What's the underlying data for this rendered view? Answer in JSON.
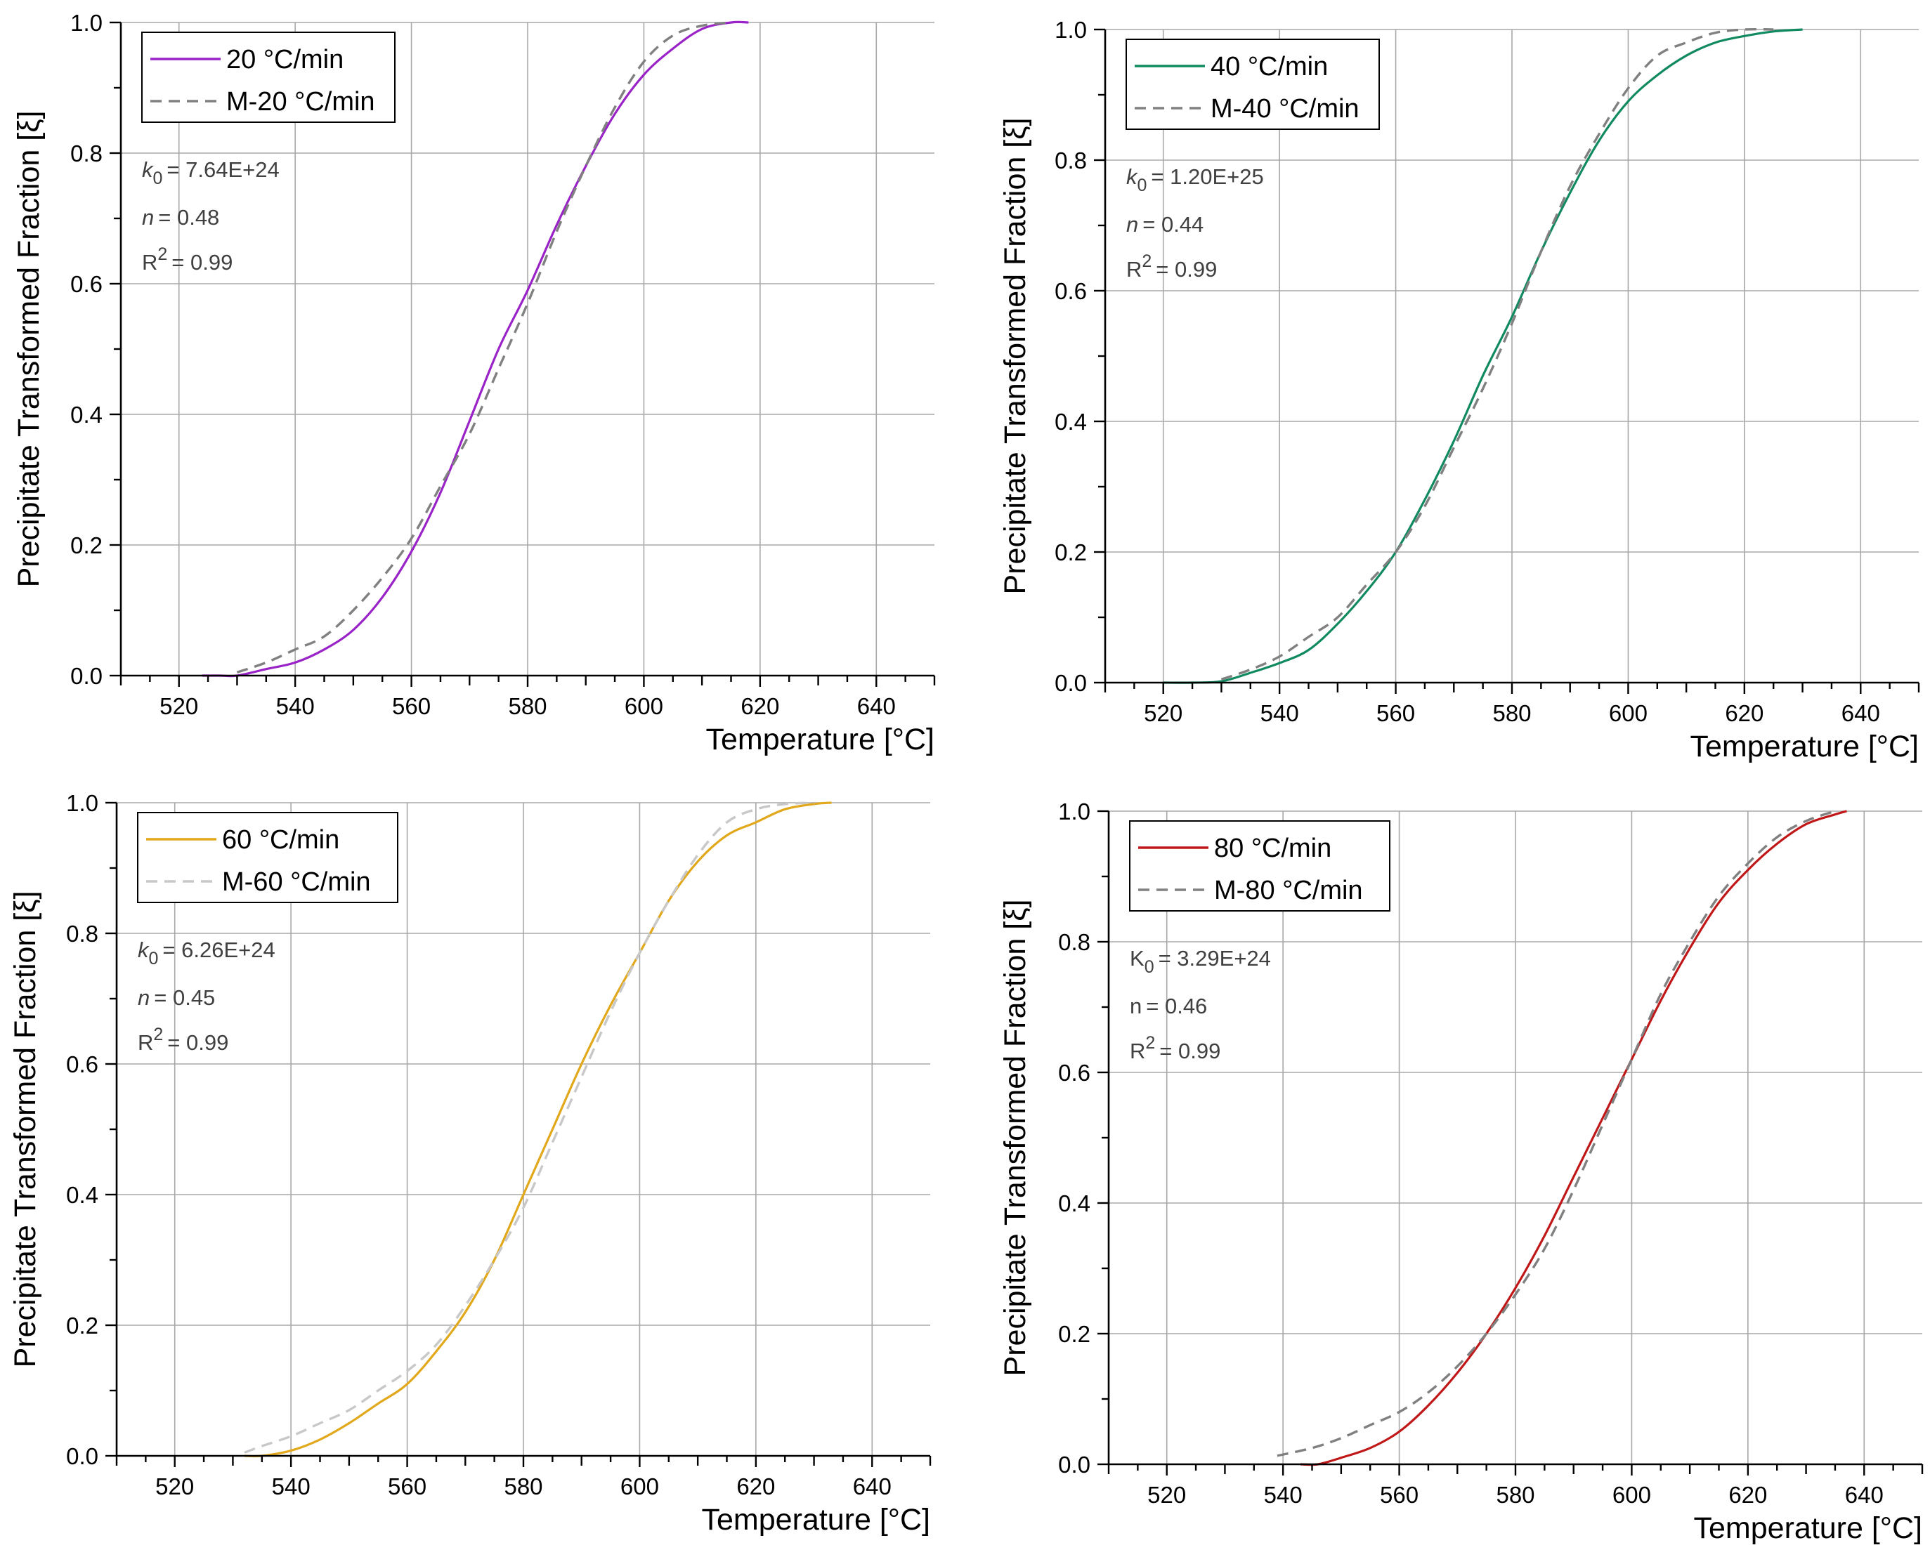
{
  "chart_data": [
    {
      "type": "line",
      "title": "",
      "xlabel": "Temperature [°C]",
      "ylabel": "Precipitate Transformed Fraction [ξ]",
      "xlim": [
        510,
        650
      ],
      "ylim": [
        0,
        1
      ],
      "xticks": [
        "520",
        "540",
        "560",
        "580",
        "600",
        "620",
        "640"
      ],
      "yticks": [
        "0.0",
        "0.2",
        "0.4",
        "0.6",
        "0.8",
        "1.0"
      ],
      "grid": true,
      "legend_position": "top-left",
      "series": [
        {
          "name": "20 °C/min",
          "style": "solid",
          "color": "#9a23c8",
          "x": [
            524,
            527,
            530,
            535,
            540,
            545,
            550,
            555,
            560,
            565,
            570,
            575,
            580,
            585,
            590,
            595,
            600,
            605,
            610,
            615,
            618
          ],
          "y": [
            0.0,
            0.0,
            0.0,
            0.01,
            0.02,
            0.04,
            0.07,
            0.12,
            0.19,
            0.28,
            0.39,
            0.5,
            0.59,
            0.69,
            0.78,
            0.86,
            0.92,
            0.96,
            0.99,
            1.0,
            1.0
          ]
        },
        {
          "name": "M-20 °C/min",
          "style": "dashed",
          "color": "#808080",
          "x": [
            530,
            535,
            540,
            545,
            550,
            555,
            560,
            565,
            570,
            575,
            580,
            585,
            590,
            595,
            600,
            605,
            610,
            615
          ],
          "y": [
            0.005,
            0.02,
            0.04,
            0.06,
            0.1,
            0.15,
            0.21,
            0.29,
            0.37,
            0.47,
            0.57,
            0.68,
            0.78,
            0.87,
            0.94,
            0.98,
            0.995,
            1.0
          ]
        }
      ],
      "annotations": {
        "k0_label": "k",
        "k0_sub": "0",
        "k0_value": "= 7.64E+24",
        "n_label": "n",
        "n_value": "= 0.48",
        "r2_label": "R",
        "r2_sup": "2",
        "r2_value": "= 0.99"
      }
    },
    {
      "type": "line",
      "title": "",
      "xlabel": "Temperature [°C]",
      "ylabel": "Precipitate Transformed Fraction [ξ]",
      "xlim": [
        510,
        650
      ],
      "ylim": [
        0,
        1
      ],
      "xticks": [
        "520",
        "540",
        "560",
        "580",
        "600",
        "620",
        "640"
      ],
      "yticks": [
        "0.0",
        "0.2",
        "0.4",
        "0.6",
        "0.8",
        "1.0"
      ],
      "grid": true,
      "legend_position": "top-left",
      "series": [
        {
          "name": "40 °C/min",
          "style": "solid",
          "color": "#118a5f",
          "x": [
            520,
            525,
            530,
            535,
            540,
            545,
            550,
            555,
            560,
            565,
            570,
            575,
            580,
            585,
            590,
            595,
            600,
            605,
            610,
            615,
            620,
            625,
            630
          ],
          "y": [
            0.0,
            0.0,
            0.002,
            0.015,
            0.03,
            0.05,
            0.09,
            0.14,
            0.2,
            0.28,
            0.37,
            0.47,
            0.56,
            0.66,
            0.75,
            0.83,
            0.89,
            0.93,
            0.96,
            0.98,
            0.99,
            0.997,
            1.0
          ]
        },
        {
          "name": "M-40 °C/min",
          "style": "dashed",
          "color": "#808080",
          "x": [
            530,
            535,
            540,
            545,
            550,
            555,
            560,
            565,
            570,
            575,
            580,
            585,
            590,
            595,
            600,
            605,
            610,
            615,
            620,
            625
          ],
          "y": [
            0.005,
            0.02,
            0.04,
            0.07,
            0.1,
            0.15,
            0.2,
            0.27,
            0.36,
            0.45,
            0.55,
            0.66,
            0.76,
            0.84,
            0.91,
            0.96,
            0.98,
            0.995,
            1.0,
            1.0
          ]
        }
      ],
      "annotations": {
        "k0_label": "k",
        "k0_sub": "0",
        "k0_value": "= 1.20E+25",
        "n_label": "n",
        "n_value": "= 0.44",
        "r2_label": "R",
        "r2_sup": "2",
        "r2_value": "= 0.99"
      }
    },
    {
      "type": "line",
      "title": "",
      "xlabel": "Temperature [°C]",
      "ylabel": "Precipitate Transformed Fraction [ξ]",
      "xlim": [
        510,
        650
      ],
      "ylim": [
        0,
        1
      ],
      "xticks": [
        "520",
        "540",
        "560",
        "580",
        "600",
        "620",
        "640"
      ],
      "yticks": [
        "0.0",
        "0.2",
        "0.4",
        "0.6",
        "0.8",
        "1.0"
      ],
      "grid": true,
      "legend_position": "top-left",
      "series": [
        {
          "name": "60 °C/min",
          "style": "solid",
          "color": "#e2a81c",
          "x": [
            532,
            535,
            540,
            545,
            550,
            555,
            560,
            565,
            570,
            575,
            580,
            585,
            590,
            595,
            600,
            605,
            610,
            615,
            620,
            625,
            630,
            633
          ],
          "y": [
            0.0,
            0.0,
            0.008,
            0.025,
            0.05,
            0.08,
            0.11,
            0.16,
            0.22,
            0.3,
            0.4,
            0.5,
            0.6,
            0.69,
            0.77,
            0.85,
            0.91,
            0.95,
            0.97,
            0.99,
            0.998,
            1.0
          ]
        },
        {
          "name": "M-60 °C/min",
          "style": "dashed",
          "color": "#c8c8c8",
          "x": [
            532,
            535,
            540,
            545,
            550,
            555,
            560,
            565,
            570,
            575,
            580,
            585,
            590,
            595,
            600,
            605,
            610,
            615,
            620,
            625,
            630
          ],
          "y": [
            0.005,
            0.015,
            0.03,
            0.05,
            0.07,
            0.1,
            0.13,
            0.17,
            0.23,
            0.3,
            0.38,
            0.48,
            0.58,
            0.68,
            0.77,
            0.85,
            0.92,
            0.97,
            0.99,
            0.998,
            1.0
          ]
        }
      ],
      "annotations": {
        "k0_label": "k",
        "k0_sub": "0",
        "k0_value": "= 6.26E+24",
        "n_label": "n",
        "n_value": "= 0.45",
        "r2_label": "R",
        "r2_sup": "2",
        "r2_value": "= 0.99"
      }
    },
    {
      "type": "line",
      "title": "",
      "xlabel": "Temperature [°C]",
      "ylabel": "Precipitate Transformed Fraction [ξ]",
      "xlim": [
        510,
        650
      ],
      "ylim": [
        0,
        1
      ],
      "xticks": [
        "520",
        "540",
        "560",
        "580",
        "600",
        "620",
        "640"
      ],
      "yticks": [
        "0.0",
        "0.2",
        "0.4",
        "0.6",
        "0.8",
        "1.0"
      ],
      "grid": true,
      "legend_position": "top-left",
      "series": [
        {
          "name": "80 °C/min",
          "style": "solid",
          "color": "#c01818",
          "x": [
            543,
            546,
            550,
            555,
            560,
            565,
            570,
            575,
            580,
            585,
            590,
            595,
            600,
            605,
            610,
            615,
            620,
            625,
            630,
            635,
            637
          ],
          "y": [
            0.0,
            0.0,
            0.01,
            0.025,
            0.05,
            0.09,
            0.14,
            0.2,
            0.27,
            0.35,
            0.44,
            0.53,
            0.62,
            0.71,
            0.79,
            0.86,
            0.91,
            0.95,
            0.98,
            0.995,
            1.0
          ]
        },
        {
          "name": "M-80 °C/min",
          "style": "dashed",
          "color": "#808080",
          "x": [
            539,
            545,
            550,
            555,
            560,
            565,
            570,
            575,
            580,
            585,
            590,
            595,
            600,
            605,
            610,
            615,
            620,
            625,
            630,
            635
          ],
          "y": [
            0.013,
            0.025,
            0.04,
            0.06,
            0.08,
            0.11,
            0.15,
            0.2,
            0.26,
            0.33,
            0.42,
            0.52,
            0.62,
            0.72,
            0.8,
            0.87,
            0.92,
            0.96,
            0.985,
            1.0
          ]
        }
      ],
      "annotations": {
        "k0_label": "K",
        "k0_sub": "0",
        "k0_value": "= 3.29E+24",
        "n_label": "n",
        "n_value": "= 0.46",
        "r2_label": "R",
        "r2_sup": "2",
        "r2_value": "= 0.99"
      }
    }
  ]
}
